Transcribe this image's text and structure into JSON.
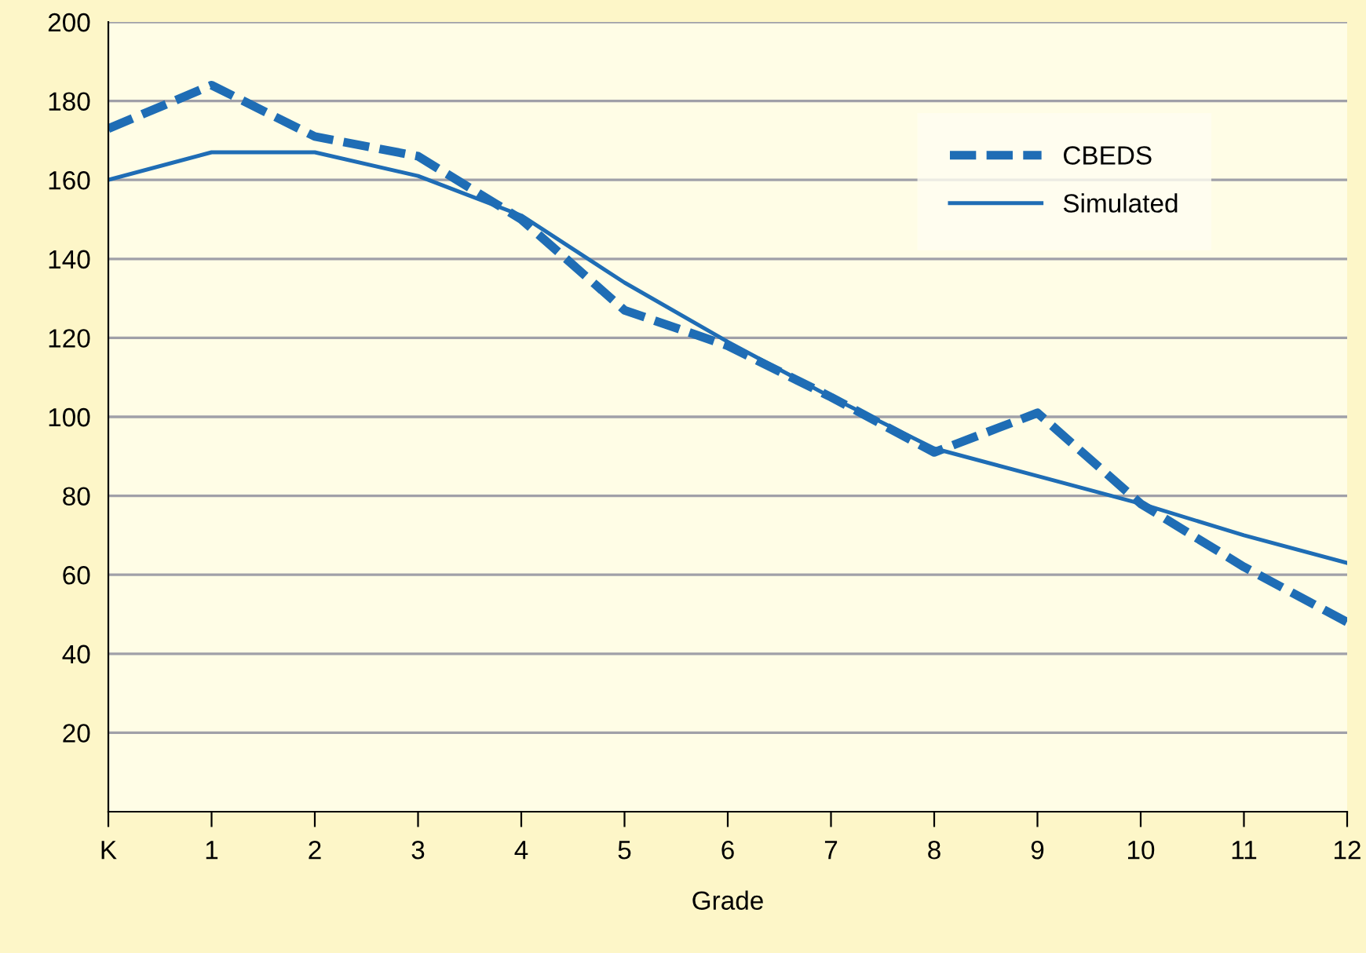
{
  "chart_data": {
    "type": "line",
    "xlabel": "Grade",
    "categories": [
      "K",
      "1",
      "2",
      "3",
      "4",
      "5",
      "6",
      "7",
      "8",
      "9",
      "10",
      "11",
      "12"
    ],
    "series": [
      {
        "name": "CBEDS",
        "color": "#1f6db5",
        "line_style": "dashed",
        "values": [
          173,
          184,
          171,
          166,
          150,
          127,
          118,
          105,
          91,
          101,
          78,
          62,
          48
        ]
      },
      {
        "name": "Simulated",
        "color": "#1f6db5",
        "line_style": "solid",
        "values": [
          160,
          167,
          167,
          161,
          151,
          134,
          119,
          105,
          92,
          85,
          78,
          70,
          63
        ]
      }
    ],
    "ylim": [
      0,
      200
    ],
    "yticks": [
      20,
      40,
      60,
      80,
      100,
      120,
      140,
      160,
      180,
      200
    ],
    "grid": "y",
    "legend": "top right",
    "marker": "none"
  }
}
